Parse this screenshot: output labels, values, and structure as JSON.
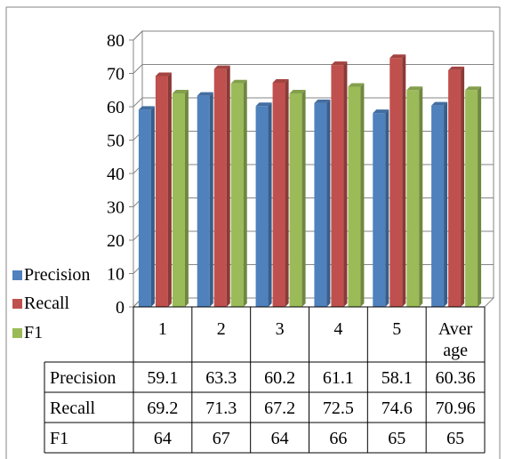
{
  "chart_data": {
    "type": "bar",
    "categories": [
      "1",
      "2",
      "3",
      "4",
      "5",
      "Average"
    ],
    "category_labels": [
      [
        "1"
      ],
      [
        "2"
      ],
      [
        "3"
      ],
      [
        "4"
      ],
      [
        "5"
      ],
      [
        "Aver",
        "age"
      ]
    ],
    "series": [
      {
        "name": "Precision",
        "values": [
          59.1,
          63.3,
          60.2,
          61.1,
          58.1,
          60.36
        ],
        "color": "#4f81bd"
      },
      {
        "name": "Recall",
        "values": [
          69.2,
          71.3,
          67.2,
          72.5,
          74.6,
          70.96
        ],
        "color": "#c0504d"
      },
      {
        "name": "F1",
        "values": [
          64,
          67,
          64,
          66,
          65,
          65
        ],
        "color": "#9bbb59"
      }
    ],
    "table_values": [
      [
        "59.1",
        "63.3",
        "60.2",
        "61.1",
        "58.1",
        "60.36"
      ],
      [
        "69.2",
        "71.3",
        "67.2",
        "72.5",
        "74.6",
        "70.96"
      ],
      [
        "64",
        "67",
        "64",
        "66",
        "65",
        "65"
      ]
    ],
    "yticks": [
      "0",
      "10",
      "20",
      "30",
      "40",
      "50",
      "60",
      "70",
      "80"
    ],
    "ylim": [
      0,
      80
    ],
    "grid": true,
    "style": "3d-clustered-column",
    "legend_position": "left",
    "data_table": true
  }
}
